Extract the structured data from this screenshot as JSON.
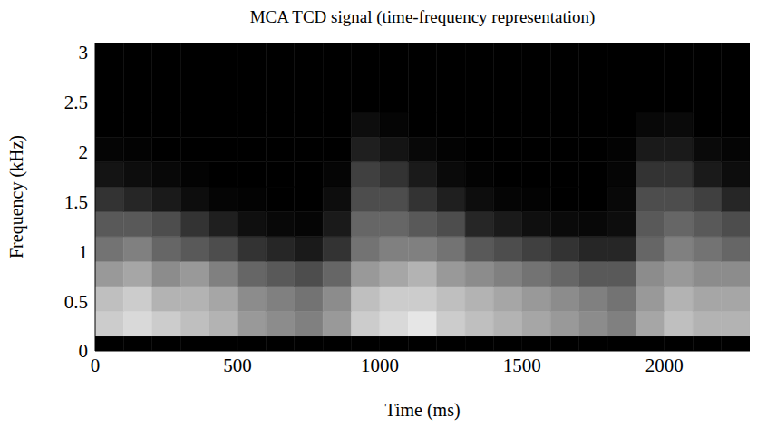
{
  "chart_data": {
    "type": "heatmap",
    "title": "MCA TCD signal (time-frequency representation)",
    "x_label": "Time (ms)",
    "y_label": "Frequency (kHz)",
    "xlim": [
      0,
      2300
    ],
    "xticks": [
      0,
      500,
      1000,
      1500,
      2000
    ],
    "ylim": [
      0,
      3.1
    ],
    "yticks": [
      0,
      0.5,
      1,
      1.5,
      2,
      2.5,
      3
    ],
    "x_bins": [
      0,
      100,
      200,
      300,
      400,
      500,
      600,
      700,
      800,
      900,
      1000,
      1100,
      1200,
      1300,
      1400,
      1500,
      1600,
      1700,
      1800,
      1900,
      2000,
      2100,
      2200,
      2300
    ],
    "y_bins": [
      0,
      0.15,
      0.4,
      0.65,
      0.9,
      1.15,
      1.4,
      1.65,
      1.9,
      2.15,
      2.4,
      3.1
    ],
    "zlim": [
      0,
      1
    ],
    "cells": [
      [
        0,
        0,
        0,
        0,
        0,
        0,
        0,
        0,
        0,
        0,
        0,
        0,
        0,
        0,
        0,
        0,
        0,
        0,
        0,
        0,
        0,
        0,
        0
      ],
      [
        0.8,
        0.85,
        0.8,
        0.75,
        0.7,
        0.6,
        0.55,
        0.5,
        0.6,
        0.8,
        0.85,
        0.9,
        0.8,
        0.75,
        0.7,
        0.65,
        0.6,
        0.55,
        0.5,
        0.65,
        0.75,
        0.7,
        0.7
      ],
      [
        0.75,
        0.8,
        0.7,
        0.7,
        0.65,
        0.55,
        0.5,
        0.45,
        0.55,
        0.75,
        0.8,
        0.8,
        0.75,
        0.7,
        0.65,
        0.6,
        0.55,
        0.5,
        0.45,
        0.6,
        0.7,
        0.65,
        0.65
      ],
      [
        0.6,
        0.65,
        0.55,
        0.6,
        0.5,
        0.4,
        0.35,
        0.3,
        0.4,
        0.6,
        0.65,
        0.7,
        0.6,
        0.55,
        0.5,
        0.45,
        0.4,
        0.35,
        0.35,
        0.55,
        0.6,
        0.55,
        0.55
      ],
      [
        0.45,
        0.5,
        0.4,
        0.35,
        0.3,
        0.2,
        0.15,
        0.1,
        0.2,
        0.45,
        0.5,
        0.5,
        0.45,
        0.35,
        0.3,
        0.25,
        0.2,
        0.15,
        0.15,
        0.4,
        0.5,
        0.45,
        0.4
      ],
      [
        0.35,
        0.35,
        0.3,
        0.2,
        0.12,
        0.06,
        0.03,
        0.02,
        0.1,
        0.4,
        0.4,
        0.35,
        0.3,
        0.15,
        0.1,
        0.06,
        0.04,
        0.03,
        0.05,
        0.35,
        0.4,
        0.35,
        0.3
      ],
      [
        0.2,
        0.15,
        0.1,
        0.05,
        0.02,
        0.01,
        0,
        0,
        0.05,
        0.3,
        0.3,
        0.2,
        0.12,
        0.05,
        0.02,
        0.01,
        0,
        0,
        0.03,
        0.3,
        0.3,
        0.25,
        0.15
      ],
      [
        0.08,
        0.05,
        0.03,
        0.01,
        0,
        0,
        0,
        0,
        0.02,
        0.25,
        0.2,
        0.1,
        0.04,
        0.01,
        0,
        0,
        0,
        0,
        0.02,
        0.2,
        0.2,
        0.1,
        0.05
      ],
      [
        0.02,
        0.01,
        0,
        0,
        0,
        0,
        0,
        0,
        0,
        0.12,
        0.08,
        0.03,
        0.01,
        0,
        0,
        0,
        0,
        0,
        0.01,
        0.1,
        0.1,
        0.04,
        0.02
      ],
      [
        0,
        0,
        0,
        0,
        0,
        0,
        0,
        0,
        0,
        0.05,
        0.02,
        0,
        0,
        0,
        0,
        0,
        0,
        0,
        0,
        0.03,
        0.04,
        0,
        0
      ],
      [
        0,
        0,
        0,
        0,
        0,
        0,
        0,
        0,
        0,
        0,
        0,
        0,
        0,
        0,
        0,
        0,
        0,
        0,
        0,
        0,
        0,
        0,
        0
      ]
    ],
    "tick_labels": true,
    "grid": false
  }
}
